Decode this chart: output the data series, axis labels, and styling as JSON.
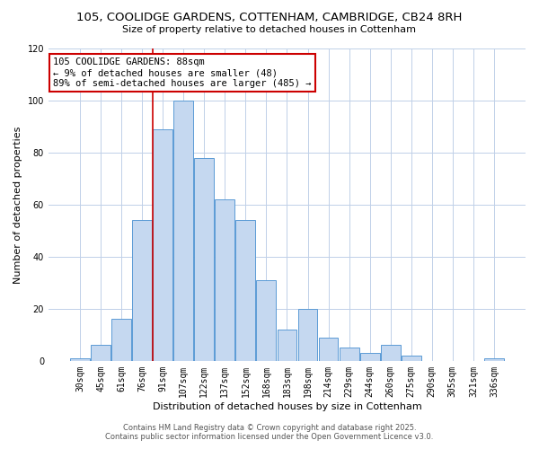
{
  "title": "105, COOLIDGE GARDENS, COTTENHAM, CAMBRIDGE, CB24 8RH",
  "subtitle": "Size of property relative to detached houses in Cottenham",
  "xlabel": "Distribution of detached houses by size in Cottenham",
  "ylabel": "Number of detached properties",
  "bar_labels": [
    "30sqm",
    "45sqm",
    "61sqm",
    "76sqm",
    "91sqm",
    "107sqm",
    "122sqm",
    "137sqm",
    "152sqm",
    "168sqm",
    "183sqm",
    "198sqm",
    "214sqm",
    "229sqm",
    "244sqm",
    "260sqm",
    "275sqm",
    "290sqm",
    "305sqm",
    "321sqm",
    "336sqm"
  ],
  "bar_values": [
    1,
    6,
    16,
    54,
    89,
    100,
    78,
    62,
    54,
    31,
    12,
    20,
    9,
    5,
    3,
    6,
    2,
    0,
    0,
    0,
    1
  ],
  "bar_color": "#c5d8f0",
  "bar_edge_color": "#5b9bd5",
  "background_color": "#ffffff",
  "grid_color": "#c0d0e8",
  "vline_color": "#cc0000",
  "vline_index": 4,
  "annotation_text": "105 COOLIDGE GARDENS: 88sqm\n← 9% of detached houses are smaller (48)\n89% of semi-detached houses are larger (485) →",
  "annotation_box_color": "#ffffff",
  "annotation_box_edge_color": "#cc0000",
  "footer_line1": "Contains HM Land Registry data © Crown copyright and database right 2025.",
  "footer_line2": "Contains public sector information licensed under the Open Government Licence v3.0.",
  "ylim": [
    0,
    120
  ],
  "yticks": [
    0,
    20,
    40,
    60,
    80,
    100,
    120
  ],
  "title_fontsize": 9.5,
  "subtitle_fontsize": 8,
  "xlabel_fontsize": 8,
  "ylabel_fontsize": 8,
  "tick_fontsize": 7,
  "annotation_fontsize": 7.5,
  "footer_fontsize": 6
}
